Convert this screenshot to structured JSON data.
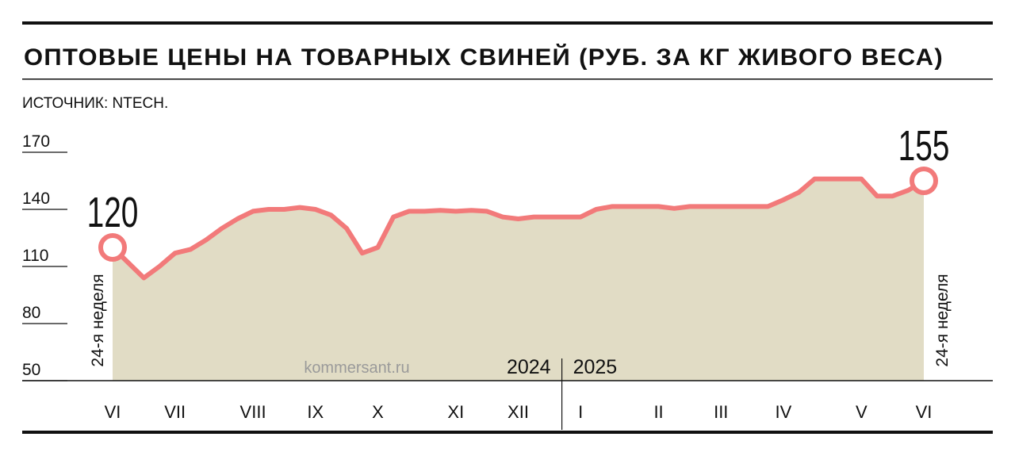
{
  "chart_data": {
    "type": "area",
    "title": "ОПТОВЫЕ ЦЕНЫ НА ТОВАРНЫХ СВИНЕЙ (РУБ. ЗА КГ ЖИВОГО ВЕСА)",
    "source": "ИСТОЧНИК: NTECH.",
    "watermark": "kommersant.ru",
    "year_labels": [
      "2024",
      "2025"
    ],
    "start_label": "24-я неделя",
    "end_label": "24-я неделя",
    "categories": [
      "VI",
      null,
      null,
      null,
      "VII",
      null,
      null,
      null,
      null,
      "VIII",
      null,
      null,
      null,
      "IX",
      null,
      null,
      null,
      "X",
      null,
      null,
      null,
      null,
      "XI",
      null,
      null,
      null,
      "XII",
      null,
      null,
      null,
      "I",
      null,
      null,
      null,
      null,
      "II",
      null,
      null,
      null,
      "III",
      null,
      null,
      null,
      "IV",
      null,
      null,
      null,
      null,
      "V",
      null,
      null,
      null,
      "VI"
    ],
    "values": [
      120,
      112,
      104,
      110,
      117,
      119,
      124,
      130,
      135,
      139,
      140,
      140,
      141,
      140,
      137,
      130,
      117,
      120,
      136,
      139,
      139,
      139.5,
      139,
      139.5,
      139,
      136,
      135,
      136,
      136,
      136,
      136,
      140,
      141.5,
      141.5,
      141.5,
      141.5,
      140.5,
      141.5,
      141.5,
      141.5,
      141.5,
      141.5,
      141.5,
      145,
      149,
      156,
      156,
      156,
      156,
      147,
      147,
      150,
      155
    ],
    "value_labels": [
      "120",
      null,
      null,
      null,
      null,
      null,
      null,
      null,
      null,
      null,
      null,
      null,
      null,
      null,
      null,
      null,
      null,
      null,
      null,
      null,
      null,
      null,
      null,
      null,
      null,
      null,
      null,
      null,
      null,
      null,
      null,
      null,
      null,
      null,
      null,
      null,
      null,
      null,
      null,
      null,
      null,
      null,
      null,
      null,
      null,
      null,
      null,
      null,
      null,
      null,
      null,
      null,
      "155"
    ],
    "color": "#f27a7a",
    "area_color": "#e1dcc5",
    "ylim": [
      50,
      170
    ],
    "yticks": [
      50,
      80,
      110,
      140,
      170
    ]
  }
}
